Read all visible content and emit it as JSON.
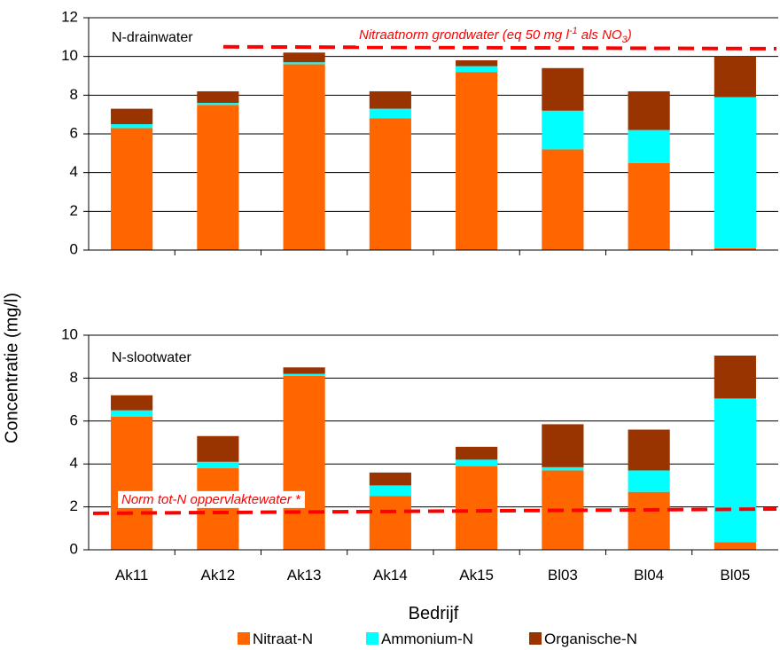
{
  "chart_data": {
    "type": "bar",
    "stacked": true,
    "ylabel": "Concentratie (mg/l)",
    "xlabel": "Bedrijf",
    "categories": [
      "Ak11",
      "Ak12",
      "Ak13",
      "Ak14",
      "Ak15",
      "Bl03",
      "Bl04",
      "Bl05"
    ],
    "legend": {
      "position": "bottom",
      "items": [
        "Nitraat-N",
        "Ammonium-N",
        "Organische-N"
      ]
    },
    "colors": {
      "Nitraat-N": "#ff6600",
      "Ammonium-N": "#00ffff",
      "Organische-N": "#993300",
      "norm": "#ff0000",
      "grid": "#000000"
    },
    "panels": [
      {
        "label": "N-drainwater",
        "ylim": [
          0,
          12
        ],
        "yticks": [
          "0",
          "2",
          "4",
          "6",
          "8",
          "10",
          "12"
        ],
        "grid": true,
        "series": [
          {
            "name": "Nitraat-N",
            "values": [
              6.3,
              7.5,
              9.6,
              6.8,
              9.2,
              5.2,
              4.5,
              0.1
            ]
          },
          {
            "name": "Ammonium-N",
            "values": [
              0.2,
              0.1,
              0.1,
              0.5,
              0.3,
              2.0,
              1.7,
              7.8
            ]
          },
          {
            "name": "Organische-N",
            "values": [
              0.8,
              0.6,
              0.5,
              0.9,
              0.3,
              2.2,
              2.0,
              2.1
            ]
          }
        ],
        "norm": {
          "label_parts": [
            "Nitraatnorm grondwater (eq 50 mg l",
            "-1",
            " als NO",
            "3",
            ")"
          ],
          "y_start": 10.5,
          "y_end": 10.4
        }
      },
      {
        "label": "N-slootwater",
        "ylim": [
          0,
          10
        ],
        "yticks": [
          "0",
          "2",
          "4",
          "6",
          "8",
          "10"
        ],
        "grid": true,
        "series": [
          {
            "name": "Nitraat-N",
            "values": [
              6.2,
              3.8,
              8.1,
              2.5,
              3.9,
              3.7,
              2.7,
              0.35
            ]
          },
          {
            "name": "Ammonium-N",
            "values": [
              0.3,
              0.3,
              0.1,
              0.5,
              0.3,
              0.15,
              1.0,
              6.7
            ]
          },
          {
            "name": "Organische-N",
            "values": [
              0.7,
              1.2,
              0.3,
              0.6,
              0.6,
              2.0,
              1.9,
              2.0
            ]
          }
        ],
        "norm": {
          "label": "Norm tot-N oppervlaktewater *",
          "y_start": 1.7,
          "y_end": 1.9
        }
      }
    ]
  }
}
